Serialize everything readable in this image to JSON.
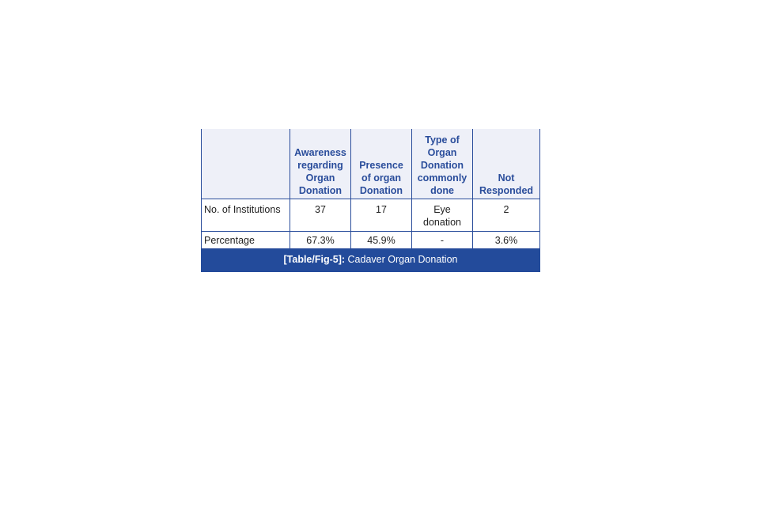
{
  "table": {
    "headers": [
      "",
      "Awareness regarding Organ Donation",
      "Presence of organ Donation",
      "Type of Organ Donation commonly done",
      "Not Responded"
    ],
    "rows": [
      [
        "No. of Institutions",
        "37",
        "17",
        "Eye donation",
        "2"
      ],
      [
        "Percentage",
        "67.3%",
        "45.9%",
        "-",
        "3.6%"
      ]
    ],
    "caption_label": "[Table/Fig-5]:",
    "caption_text": " Cadaver Organ Donation"
  },
  "colors": {
    "header_text": "#2a4d9b",
    "header_bg": "#eef0f8",
    "caption_bg": "#234b9b"
  }
}
